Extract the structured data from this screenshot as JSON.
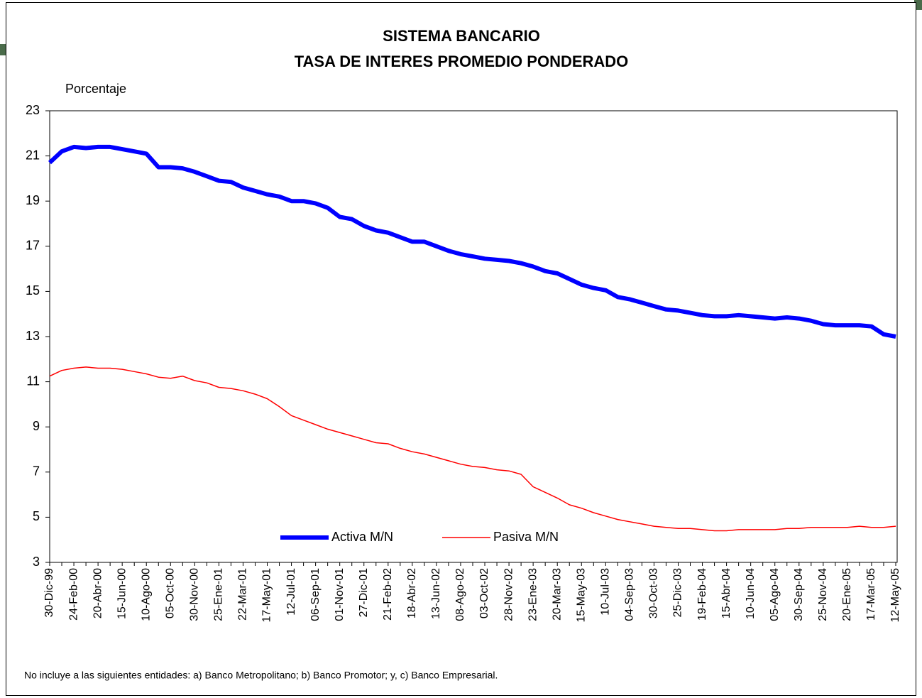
{
  "chart_data": {
    "type": "line",
    "title": "SISTEMA BANCARIO",
    "subtitle": "TASA DE INTERES PROMEDIO PONDERADO",
    "y_label": "Porcentaje",
    "note": "No incluye  a las siguientes entidades: a) Banco Metropolitano; b) Banco Promotor; y, c) Banco Empresarial.",
    "categories": [
      "30-Dic-99",
      null,
      "24-Feb-00",
      null,
      "20-Abr-00",
      null,
      "15-Jun-00",
      null,
      "10-Ago-00",
      null,
      "05-Oct-00",
      null,
      "30-Nov-00",
      null,
      "25-Ene-01",
      null,
      "22-Mar-01",
      null,
      "17-May-01",
      null,
      "12-Jul-01",
      null,
      "06-Sep-01",
      null,
      "01-Nov-01",
      null,
      "27-Dic-01",
      null,
      "21-Feb-02",
      null,
      "18-Abr-02",
      null,
      "13-Jun-02",
      null,
      "08-Ago-02",
      null,
      "03-Oct-02",
      null,
      "28-Nov-02",
      null,
      "23-Ene-03",
      null,
      "20-Mar-03",
      null,
      "15-May-03",
      null,
      "10-Jul-03",
      null,
      "04-Sep-03",
      null,
      "30-Oct-03",
      null,
      "25-Dic-03",
      null,
      "19-Feb-04",
      null,
      "15-Abr-04",
      null,
      "10-Jun-04",
      null,
      "05-Ago-04",
      null,
      "30-Sep-04",
      null,
      "25-Nov-04",
      null,
      "20-Ene-05",
      null,
      "17-Mar-05",
      null,
      "12-May-05"
    ],
    "series": [
      {
        "name": "Activa M/N",
        "color": "#0000ff",
        "width": 6,
        "values": [
          20.7,
          21.2,
          21.4,
          21.35,
          21.4,
          21.4,
          21.3,
          21.2,
          21.1,
          20.5,
          20.5,
          20.45,
          20.3,
          20.1,
          19.9,
          19.85,
          19.6,
          19.45,
          19.3,
          19.2,
          19.0,
          19.0,
          18.9,
          18.7,
          18.3,
          18.2,
          17.9,
          17.7,
          17.6,
          17.4,
          17.2,
          17.2,
          17.0,
          16.8,
          16.65,
          16.55,
          16.45,
          16.4,
          16.35,
          16.25,
          16.1,
          15.9,
          15.8,
          15.55,
          15.3,
          15.15,
          15.05,
          14.75,
          14.65,
          14.5,
          14.35,
          14.2,
          14.15,
          14.05,
          13.95,
          13.9,
          13.9,
          13.95,
          13.9,
          13.85,
          13.8,
          13.85,
          13.8,
          13.7,
          13.55,
          13.5,
          13.5,
          13.5,
          13.45,
          13.1,
          13.0
        ]
      },
      {
        "name": "Pasiva M/N",
        "color": "#ff0000",
        "width": 1.5,
        "values": [
          11.25,
          11.5,
          11.6,
          11.65,
          11.6,
          11.6,
          11.55,
          11.45,
          11.35,
          11.2,
          11.15,
          11.25,
          11.05,
          10.95,
          10.75,
          10.7,
          10.6,
          10.45,
          10.25,
          9.9,
          9.5,
          9.3,
          9.1,
          8.9,
          8.75,
          8.6,
          8.45,
          8.3,
          8.25,
          8.05,
          7.9,
          7.8,
          7.65,
          7.5,
          7.35,
          7.25,
          7.2,
          7.1,
          7.05,
          6.9,
          6.35,
          6.1,
          5.85,
          5.55,
          5.4,
          5.2,
          5.05,
          4.9,
          4.8,
          4.7,
          4.6,
          4.55,
          4.5,
          4.5,
          4.45,
          4.4,
          4.4,
          4.45,
          4.45,
          4.45,
          4.45,
          4.5,
          4.5,
          4.55,
          4.55,
          4.55,
          4.55,
          4.6,
          4.55,
          4.55,
          4.6
        ]
      }
    ],
    "ylim": [
      3,
      23
    ],
    "yticks": [
      3,
      5,
      7,
      9,
      11,
      13,
      15,
      17,
      19,
      21,
      23
    ],
    "grid": false,
    "legend": "bottom"
  }
}
